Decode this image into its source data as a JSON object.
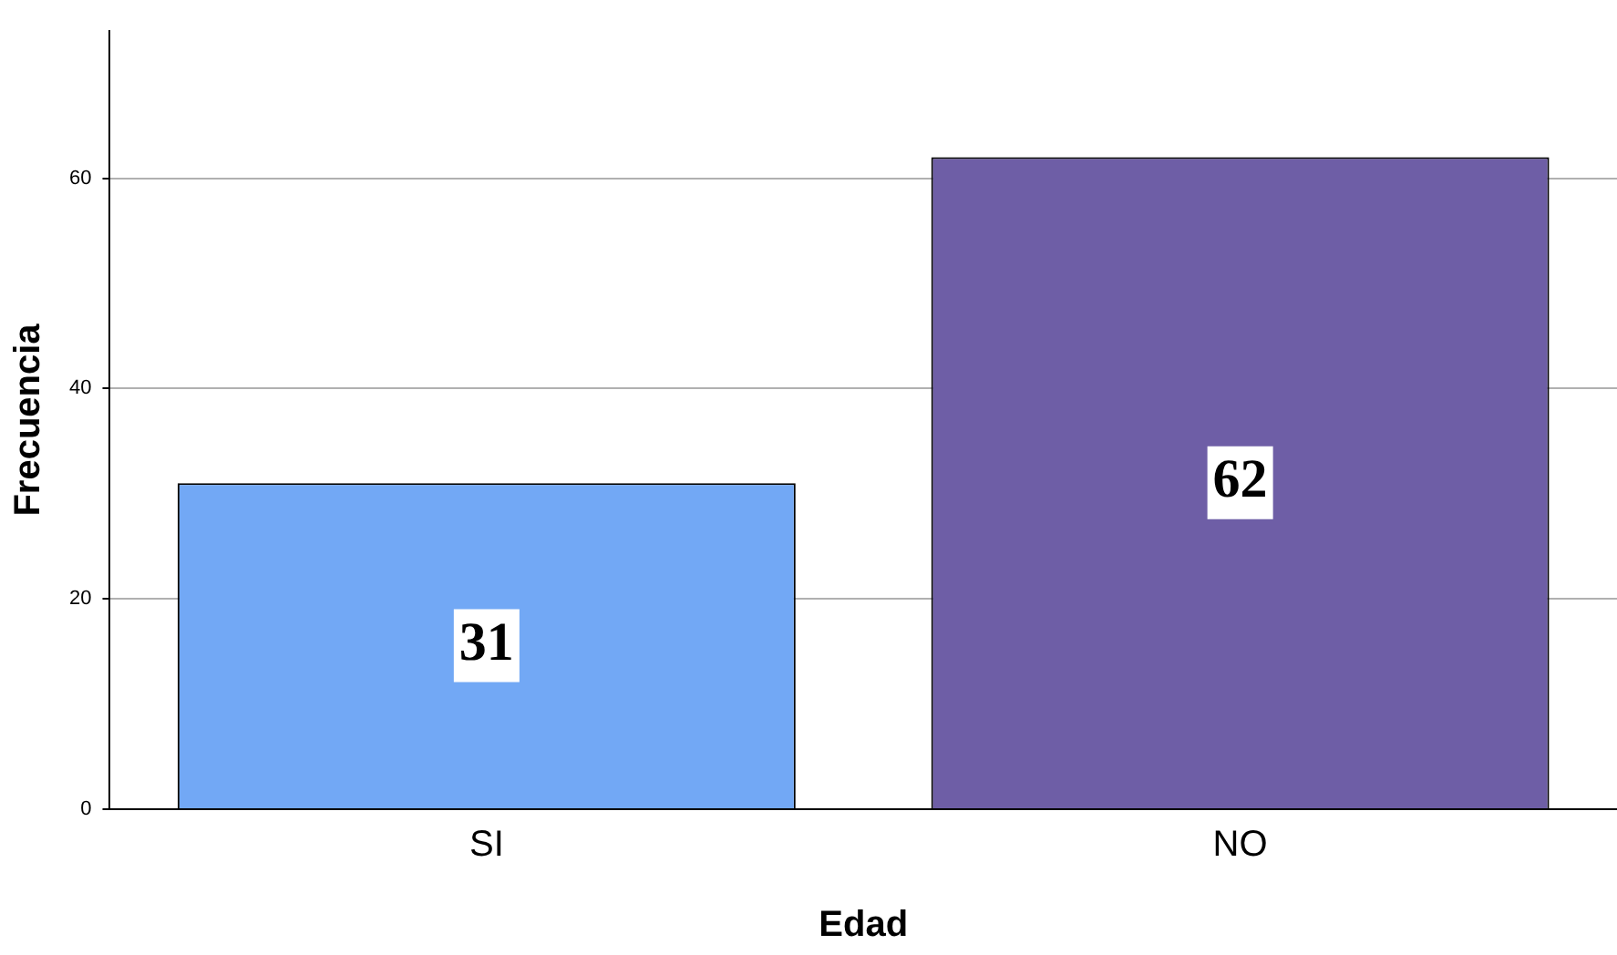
{
  "chart_data": {
    "type": "bar",
    "xlabel": "Edad",
    "ylabel": "Frecuencia",
    "categories": [
      "SI",
      "NO"
    ],
    "values": [
      31,
      62
    ],
    "colors": [
      "#72a8f5",
      "#6e5ea6"
    ],
    "ylim": [
      0,
      74
    ],
    "yticks": [
      0,
      20,
      40,
      60
    ],
    "grid": "y",
    "data_labels": true,
    "legend": false
  }
}
